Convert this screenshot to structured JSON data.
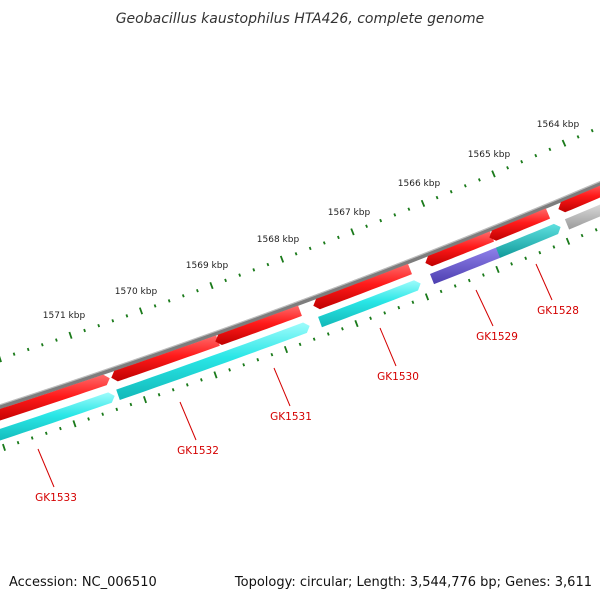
{
  "title": "Geobacillus kaustophilus HTA426, complete genome",
  "footer": {
    "accession": "Accession: NC_006510",
    "summary": "Topology: circular; Length: 3,544,776 bp; Genes: 3,611"
  },
  "colors": {
    "backbone": "#8a8a8a",
    "gene_forward": "#ff1a1a",
    "gene_reverse": "#29e6e6",
    "gene_teal": "#1fbcbc",
    "gene_purple": "#6f5fd0",
    "gene_grey": "#bdbdbd",
    "tick": "#1a7a1a",
    "label": "#d40000"
  },
  "scale_ticks": [
    "1564 kbp",
    "1565 kbp",
    "1566 kbp",
    "1567 kbp",
    "1568 kbp",
    "1569 kbp",
    "1570 kbp",
    "1571 kbp"
  ],
  "gene_labels": [
    "GK1528",
    "GK1529",
    "GK1530",
    "GK1531",
    "GK1532",
    "GK1533"
  ]
}
